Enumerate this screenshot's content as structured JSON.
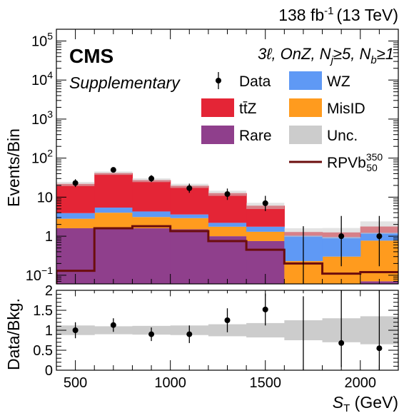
{
  "header": {
    "lumi": "138 fb",
    "lumi_exp": "-1",
    "energy": "(13 TeV)"
  },
  "brand": {
    "name": "CMS",
    "sub": "Supplementary"
  },
  "chart_data": [
    {
      "type": "bar",
      "stacked": true,
      "yscale": "log",
      "region": {
        "prefix": "3ℓ, OnZ, N",
        "nj_sub": "j",
        "nj_cond": "≥5, N",
        "nb_sub": "b",
        "nb_cond": "≥1"
      },
      "ylabel": "Events/Bin",
      "ylim": [
        0.06,
        200000
      ],
      "yticks": [
        {
          "v": 0.1,
          "base": "10",
          "exp": "−1"
        },
        {
          "v": 1,
          "label": "1"
        },
        {
          "v": 10,
          "label": "10"
        },
        {
          "v": 100,
          "base": "10",
          "exp": "2"
        },
        {
          "v": 1000,
          "base": "10",
          "exp": "3"
        },
        {
          "v": 10000,
          "base": "10",
          "exp": "4"
        },
        {
          "v": 100000,
          "base": "10",
          "exp": "5"
        }
      ],
      "bin_edges": [
        400,
        600,
        800,
        1000,
        1200,
        1400,
        1600,
        1800,
        2000,
        2200
      ],
      "series": [
        {
          "name": "Rare",
          "color": "#8f3f8c",
          "values": [
            1.6,
            1.6,
            1.6,
            1.5,
            1.0,
            0.75,
            0.05,
            0.05,
            0.07
          ]
        },
        {
          "name": "MisID",
          "color": "#ff9b1e",
          "values": [
            1.2,
            2.4,
            1.5,
            1.4,
            0.75,
            0.55,
            0.18,
            0.25,
            0.7
          ]
        },
        {
          "name": "WZ",
          "color": "#5f99f5",
          "values": [
            1.1,
            1.4,
            1.2,
            0.7,
            0.45,
            0.45,
            0.8,
            0.65,
            0.45
          ]
        },
        {
          "name": "tt̄Z",
          "color": "#e42536",
          "values": [
            18,
            36,
            23,
            16,
            10.5,
            4.3,
            0.25,
            0.3,
            0.55
          ]
        }
      ],
      "signal": {
        "name": "RPVb",
        "sup": "350",
        "sub": "50",
        "color": "#6b0d0d",
        "values": [
          0.13,
          1.6,
          1.8,
          1.35,
          0.75,
          0.45,
          0.2,
          0.11,
          0.12
        ]
      },
      "data": {
        "name": "Data",
        "x": [
          500,
          700,
          900,
          1100,
          1300,
          1500,
          1700,
          1900,
          2100
        ],
        "y": [
          23,
          50,
          30,
          17,
          12,
          7,
          null,
          1,
          1
        ],
        "err_lo": [
          4.8,
          7.0,
          5.5,
          4.1,
          3.5,
          2.6,
          null,
          0.83,
          0.83
        ],
        "err_hi": [
          5.8,
          8.1,
          6.6,
          5.2,
          4.6,
          3.8,
          null,
          2.3,
          2.3
        ]
      },
      "uncertainty": {
        "name": "Unc.",
        "color": "#cccccc",
        "rel": [
          0.12,
          0.1,
          0.11,
          0.12,
          0.15,
          0.18,
          0.25,
          0.3,
          0.35
        ]
      },
      "legend": {
        "placement": "top-right",
        "entries": [
          {
            "name": "Data",
            "kind": "marker"
          },
          {
            "name": "WZ",
            "kind": "fill",
            "color": "#5f99f5"
          },
          {
            "name": "tt̄Z",
            "kind": "fill",
            "color": "#e42536"
          },
          {
            "name": "MisID",
            "kind": "fill",
            "color": "#ff9b1e"
          },
          {
            "name": "Rare",
            "kind": "fill",
            "color": "#8f3f8c"
          },
          {
            "name": "Unc.",
            "kind": "fill",
            "color": "#cccccc"
          },
          {
            "name": "RPVb",
            "kind": "line",
            "color": "#6b0d0d",
            "sup": "350",
            "sub": "50"
          }
        ]
      }
    },
    {
      "type": "scatter",
      "ylabel": "Data/Bkg.",
      "ylim": [
        0,
        2
      ],
      "yticks": [
        "0",
        "0.5",
        "1",
        "1.5",
        "2"
      ],
      "x": [
        500,
        700,
        900,
        1100,
        1300,
        1500,
        1700,
        1900,
        2100
      ],
      "y": [
        1.0,
        1.13,
        0.9,
        0.9,
        1.25,
        1.52,
        null,
        0.68,
        0.55
      ],
      "err_lo": [
        0.2,
        0.17,
        0.17,
        0.22,
        0.3,
        0.4,
        null,
        0.6,
        0.55
      ],
      "err_hi": [
        0.2,
        0.17,
        0.17,
        0.22,
        0.3,
        0.4,
        null,
        1.4,
        1.45
      ],
      "arrow_at": [
        1700
      ],
      "uncertainty_band": [
        0.12,
        0.1,
        0.11,
        0.12,
        0.15,
        0.18,
        0.25,
        0.3,
        0.35
      ],
      "xlabel_main": "S",
      "xlabel_sub": "T",
      "xlabel_unit": " (GeV)",
      "xlim": [
        400,
        2200
      ],
      "xticks": [
        "500",
        "1000",
        "1500",
        "2000"
      ]
    }
  ]
}
